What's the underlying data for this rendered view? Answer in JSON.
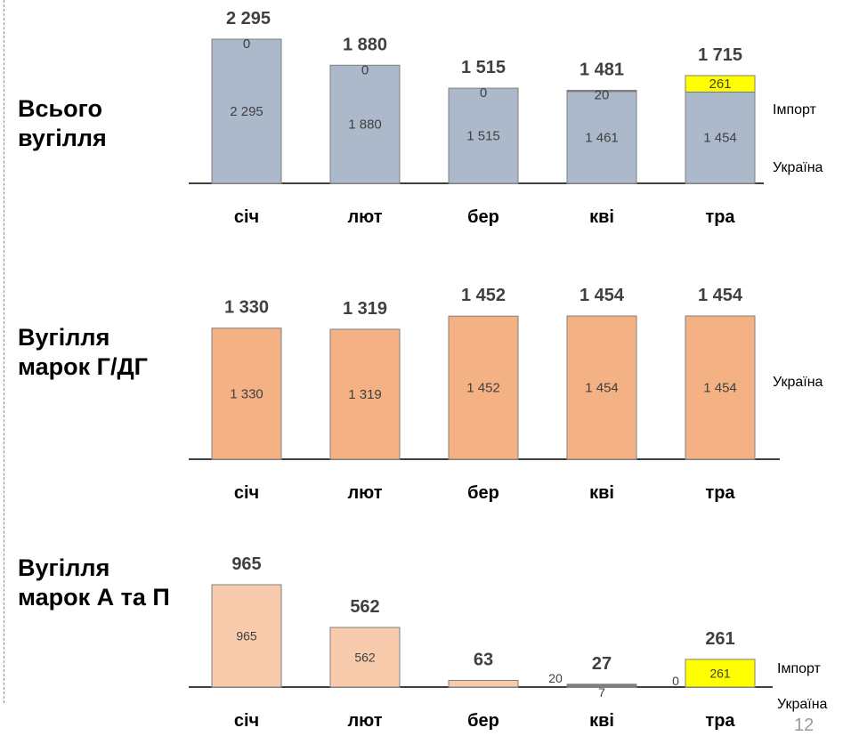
{
  "page_number": "12",
  "colors": {
    "total_fill": "#acb9ca",
    "gdg_fill": "#f4b183",
    "ap_fill": "#f8cbad",
    "import_fill": "#ffff00",
    "bar_stroke": "#7f7f7f",
    "axis_color": "#000000",
    "inner_label_color": "#404040",
    "total_label_color": "#404040"
  },
  "chart_data": [
    {
      "type": "bar",
      "stacked": true,
      "title": "Всього вугілля",
      "categories": [
        "січ",
        "лют",
        "бер",
        "кві",
        "тра"
      ],
      "series": [
        {
          "name": "Україна",
          "values": [
            2295,
            1880,
            1515,
            1461,
            1454
          ],
          "labels": [
            "2 295",
            "1 880",
            "1 515",
            "1 461",
            "1 454"
          ]
        },
        {
          "name": "Імпорт",
          "values": [
            0,
            0,
            0,
            20,
            261
          ],
          "labels": [
            "0",
            "0",
            "0",
            "20",
            "261"
          ]
        }
      ],
      "totals": [
        2295,
        1880,
        1515,
        1481,
        1715
      ],
      "total_labels": [
        "2 295",
        "1 880",
        "1 515",
        "1 481",
        "1 715"
      ],
      "legend": [
        "Імпорт",
        "Україна"
      ]
    },
    {
      "type": "bar",
      "stacked": true,
      "title": "Вугілля марок Г/ДГ",
      "categories": [
        "січ",
        "лют",
        "бер",
        "кві",
        "тра"
      ],
      "series": [
        {
          "name": "Україна",
          "values": [
            1330,
            1319,
            1452,
            1454,
            1454
          ],
          "labels": [
            "1 330",
            "1 319",
            "1 452",
            "1 454",
            "1 454"
          ]
        }
      ],
      "totals": [
        1330,
        1319,
        1452,
        1454,
        1454
      ],
      "total_labels": [
        "1 330",
        "1 319",
        "1 452",
        "1 454",
        "1 454"
      ],
      "legend": [
        "Україна"
      ]
    },
    {
      "type": "bar",
      "stacked": true,
      "title": "Вугілля марок А та П",
      "categories": [
        "січ",
        "лют",
        "бер",
        "кві",
        "тра"
      ],
      "series": [
        {
          "name": "Україна",
          "values": [
            965,
            562,
            63,
            7,
            0
          ],
          "labels": [
            "965",
            "562",
            "",
            "7",
            "0"
          ]
        },
        {
          "name": "Імпорт",
          "values": [
            0,
            0,
            0,
            20,
            261
          ],
          "labels": [
            "",
            "",
            "",
            "20",
            "261"
          ]
        }
      ],
      "totals": [
        965,
        562,
        63,
        27,
        261
      ],
      "total_labels": [
        "965",
        "562",
        "63",
        "27",
        "261"
      ],
      "legend": [
        "Імпорт",
        "Україна"
      ]
    }
  ]
}
